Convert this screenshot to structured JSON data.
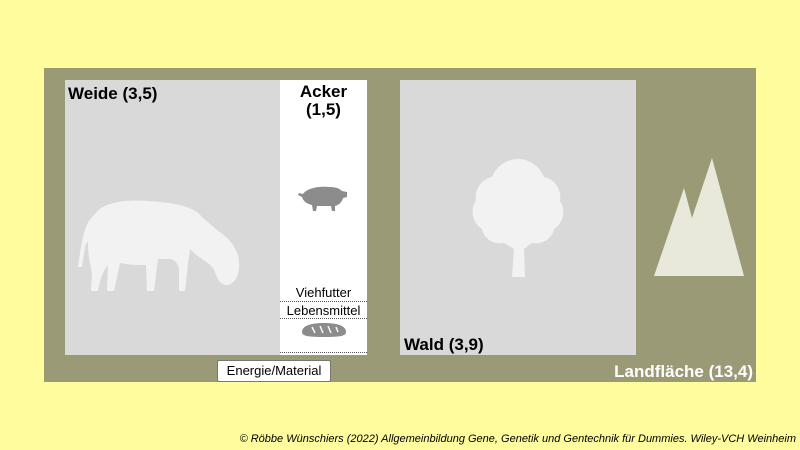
{
  "areas": {
    "weide": "Weide (3,5)",
    "acker_line1": "Acker",
    "acker_line2": "(1,5)",
    "wald": "Wald (3,9)",
    "landflaeche": "Landfläche (13,4)"
  },
  "acker_uses": {
    "viehfutter": "Viehfutter",
    "lebensmittel": "Lebensmittel",
    "energie_material": "Energie/Material"
  },
  "credit": "© Röbbe Wünschiers (2022) Allgemeinbildung Gene, Genetik und Gentechnik für Dummies. Wiley-VCH Weinheim",
  "icons": [
    "cow-icon",
    "pig-icon",
    "bread-icon",
    "tree-icon",
    "mountain-icon"
  ],
  "colors": {
    "background": "#fffc9d",
    "land": "#9b9a76",
    "area": "#d9d9d9",
    "silhouette": "#f2f2f2"
  }
}
